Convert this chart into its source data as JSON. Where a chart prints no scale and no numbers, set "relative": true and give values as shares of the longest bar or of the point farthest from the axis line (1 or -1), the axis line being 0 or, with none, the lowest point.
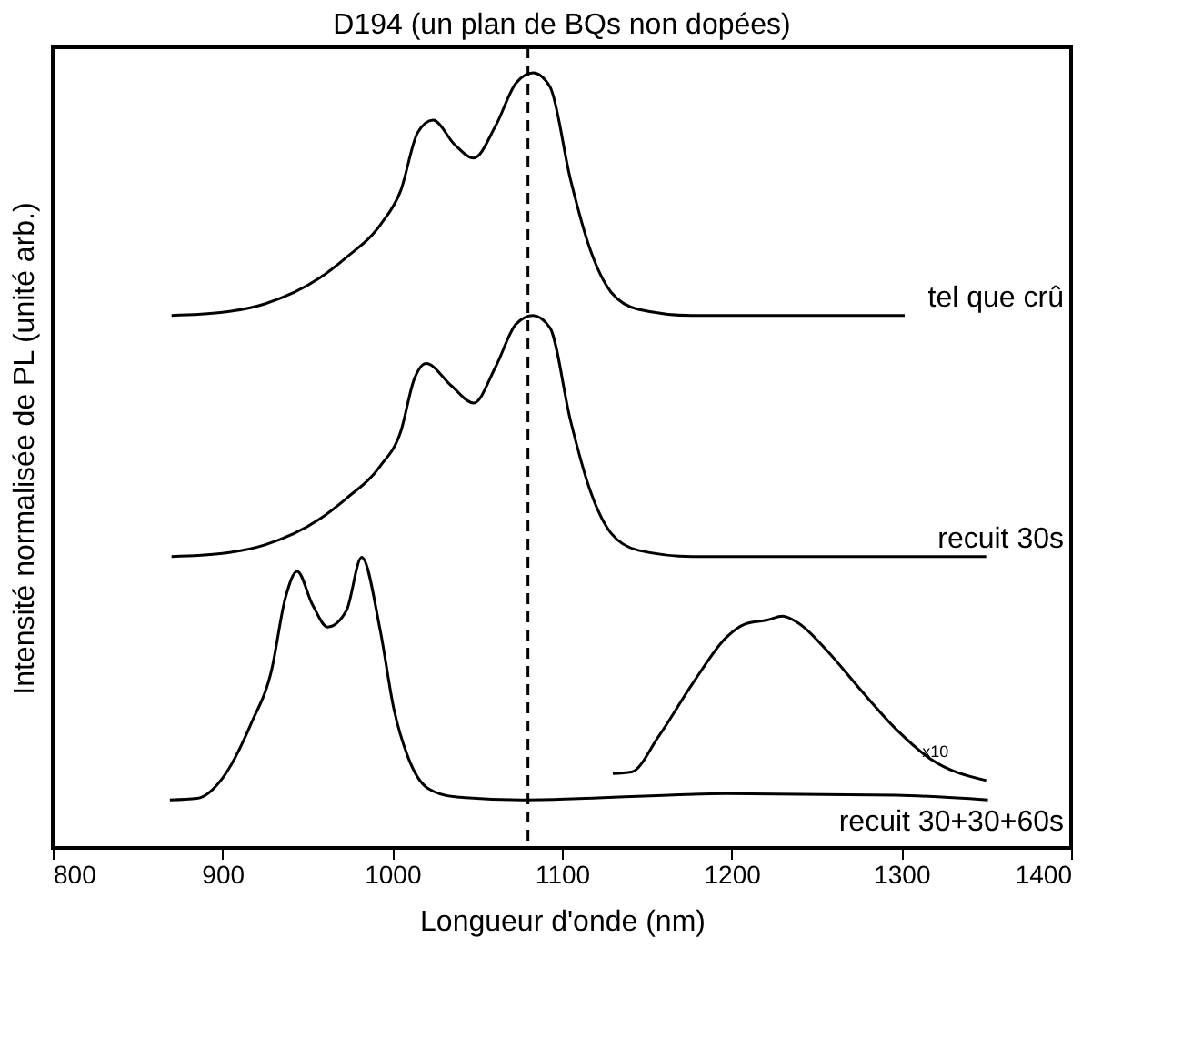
{
  "chart_data": {
    "type": "line",
    "title": "D194 (un plan de BQs non dopées)",
    "xlabel": "Longueur d'onde (nm)",
    "ylabel": "Intensité normalisée de PL (unité arb.)",
    "relative": true,
    "xlim": [
      800,
      1400
    ],
    "xticks": [
      800,
      900,
      1000,
      1100,
      1200,
      1300,
      1400
    ],
    "grid": false,
    "marker": "none",
    "line_style": "solid",
    "series": [
      {
        "name": "tel que crû",
        "color": "#000000",
        "x": [
          870,
          900,
          925,
          957,
          973,
          993,
          1005,
          1015,
          1024,
          1037,
          1048,
          1061,
          1073,
          1083,
          1093,
          1105,
          1117,
          1129,
          1145,
          1177,
          1302
        ],
        "values": [
          0.687,
          0.691,
          0.702,
          0.735,
          0.762,
          0.804,
          0.848,
          0.923,
          0.939,
          0.907,
          0.89,
          0.932,
          0.987,
          1.0,
          0.982,
          0.863,
          0.77,
          0.717,
          0.695,
          0.687,
          0.687
        ]
      },
      {
        "name": "recuit 30s",
        "color": "#000000",
        "x": [
          870,
          900,
          925,
          957,
          973,
          993,
          1005,
          1013,
          1020,
          1035,
          1048,
          1061,
          1073,
          1083,
          1093,
          1105,
          1117,
          1129,
          1145,
          1177,
          1350
        ],
        "values": [
          0.376,
          0.38,
          0.391,
          0.424,
          0.451,
          0.493,
          0.537,
          0.605,
          0.625,
          0.596,
          0.574,
          0.621,
          0.676,
          0.687,
          0.671,
          0.552,
          0.459,
          0.406,
          0.384,
          0.376,
          0.376
        ]
      },
      {
        "name": "recuit 30+30+60s",
        "color": "#000000",
        "x": [
          869,
          885,
          901,
          917,
          929,
          937,
          944,
          953,
          962,
          973,
          982,
          993,
          1001,
          1009,
          1021,
          1037,
          1077,
          1197,
          1297,
          1351
        ],
        "values": [
          0.062,
          0.064,
          0.093,
          0.161,
          0.23,
          0.322,
          0.357,
          0.314,
          0.285,
          0.306,
          0.375,
          0.28,
          0.179,
          0.119,
          0.077,
          0.066,
          0.062,
          0.07,
          0.068,
          0.062
        ]
      },
      {
        "color": "#000000",
        "x": [
          1130,
          1141,
          1157,
          1177,
          1197,
          1208,
          1221,
          1230,
          1240,
          1256,
          1276,
          1297,
          1317,
          1350
        ],
        "values": [
          0.096,
          0.098,
          0.144,
          0.212,
          0.272,
          0.289,
          0.294,
          0.299,
          0.289,
          0.255,
          0.204,
          0.153,
          0.115,
          0.087
        ]
      }
    ],
    "ref_lines": [
      {
        "axis": "x",
        "value": 1080,
        "color": "#000000",
        "line_style": "dashed"
      }
    ],
    "annotations": [
      {
        "text": "x10",
        "x": 1320,
        "y": 0.125
      }
    ]
  }
}
